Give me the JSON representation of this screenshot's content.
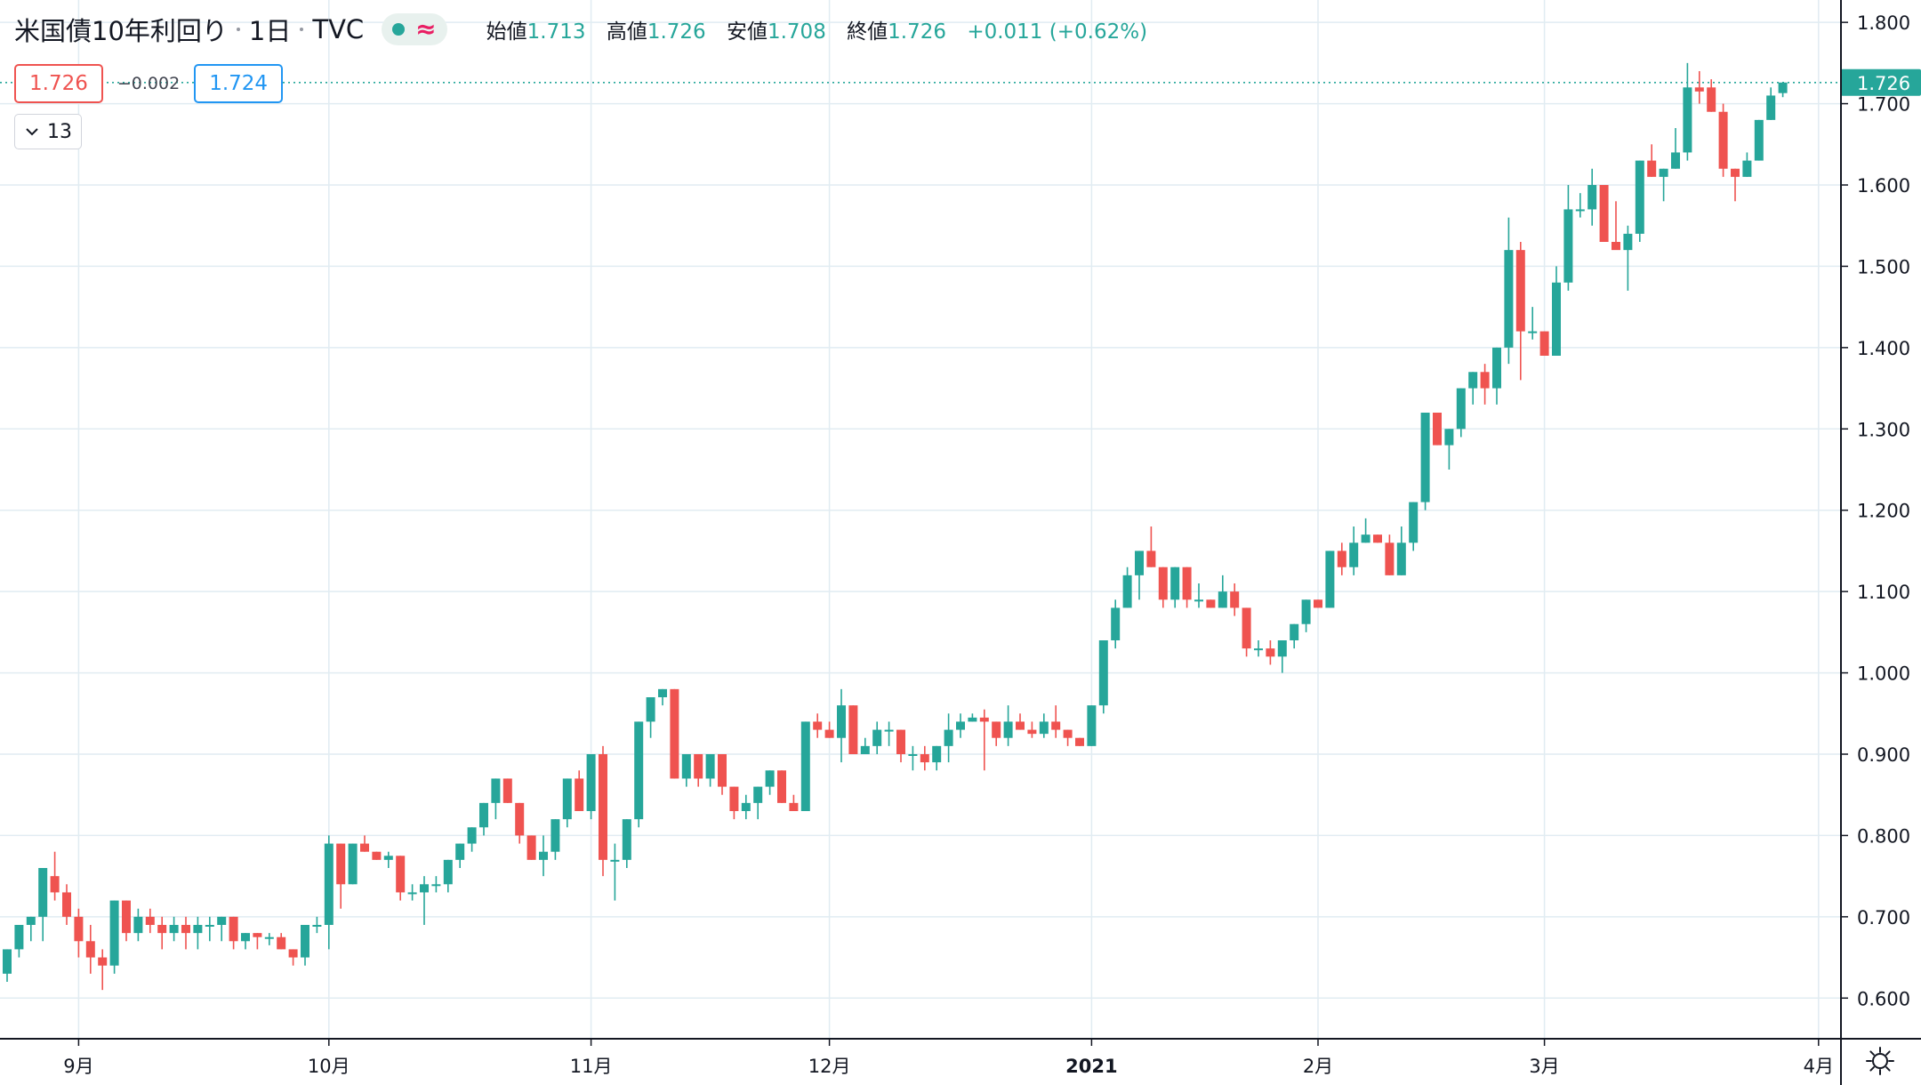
{
  "header": {
    "symbol": "米国債10年利回り",
    "interval": "1日",
    "exchange": "TVC",
    "labels": {
      "open": "始値",
      "high": "高値",
      "low": "安値",
      "close": "終値"
    },
    "values": {
      "open": "1.713",
      "high": "1.726",
      "low": "1.708",
      "close": "1.726"
    },
    "change": "+0.011 (+0.62%)",
    "status_icon": "market-status-dot-icon",
    "wave_icon": "delayed-data-icon"
  },
  "trade": {
    "sell": "1.726",
    "spread": "−0.002",
    "buy": "1.724"
  },
  "collapse_count": "13",
  "colors": {
    "up": "#26a69a",
    "down": "#ef5350",
    "grid": "#e1ecf2",
    "lastPrice": "#26a69a"
  },
  "chart_data": {
    "type": "candlestick",
    "instrument": "米国債10年利回り",
    "ylim": [
      0.55,
      1.81
    ],
    "yticks": [
      "0.600",
      "0.700",
      "0.800",
      "0.900",
      "1.000",
      "1.100",
      "1.200",
      "1.300",
      "1.400",
      "1.500",
      "1.600",
      "1.700",
      "1.800"
    ],
    "xticks": [
      {
        "label": "9月",
        "index": 6
      },
      {
        "label": "10月",
        "index": 27
      },
      {
        "label": "11月",
        "index": 49
      },
      {
        "label": "12月",
        "index": 69
      },
      {
        "label": "2021",
        "index": 91
      },
      {
        "label": "2月",
        "index": 110
      },
      {
        "label": "3月",
        "index": 129
      },
      {
        "label": "4月",
        "index": 152
      }
    ],
    "last_price": "1.726",
    "candles": [
      [
        0.63,
        0.66,
        0.62,
        0.66
      ],
      [
        0.66,
        0.69,
        0.65,
        0.69
      ],
      [
        0.69,
        0.7,
        0.67,
        0.7
      ],
      [
        0.7,
        0.76,
        0.67,
        0.76
      ],
      [
        0.75,
        0.78,
        0.72,
        0.73
      ],
      [
        0.73,
        0.74,
        0.69,
        0.7
      ],
      [
        0.7,
        0.71,
        0.65,
        0.67
      ],
      [
        0.67,
        0.69,
        0.63,
        0.65
      ],
      [
        0.65,
        0.66,
        0.61,
        0.64
      ],
      [
        0.64,
        0.72,
        0.63,
        0.72
      ],
      [
        0.72,
        0.72,
        0.67,
        0.68
      ],
      [
        0.68,
        0.71,
        0.67,
        0.7
      ],
      [
        0.7,
        0.71,
        0.68,
        0.69
      ],
      [
        0.69,
        0.7,
        0.66,
        0.68
      ],
      [
        0.68,
        0.7,
        0.67,
        0.69
      ],
      [
        0.69,
        0.7,
        0.66,
        0.68
      ],
      [
        0.68,
        0.7,
        0.66,
        0.69
      ],
      [
        0.69,
        0.7,
        0.67,
        0.69
      ],
      [
        0.69,
        0.7,
        0.67,
        0.7
      ],
      [
        0.7,
        0.7,
        0.66,
        0.67
      ],
      [
        0.67,
        0.68,
        0.66,
        0.68
      ],
      [
        0.68,
        0.68,
        0.66,
        0.675
      ],
      [
        0.675,
        0.68,
        0.665,
        0.675
      ],
      [
        0.675,
        0.68,
        0.66,
        0.66
      ],
      [
        0.66,
        0.66,
        0.64,
        0.65
      ],
      [
        0.65,
        0.69,
        0.64,
        0.69
      ],
      [
        0.69,
        0.7,
        0.68,
        0.69
      ],
      [
        0.69,
        0.8,
        0.66,
        0.79
      ],
      [
        0.79,
        0.79,
        0.71,
        0.74
      ],
      [
        0.74,
        0.79,
        0.74,
        0.79
      ],
      [
        0.79,
        0.8,
        0.78,
        0.78
      ],
      [
        0.78,
        0.78,
        0.77,
        0.77
      ],
      [
        0.77,
        0.78,
        0.76,
        0.775
      ],
      [
        0.775,
        0.775,
        0.72,
        0.73
      ],
      [
        0.73,
        0.74,
        0.72,
        0.73
      ],
      [
        0.73,
        0.75,
        0.69,
        0.74
      ],
      [
        0.74,
        0.75,
        0.73,
        0.74
      ],
      [
        0.74,
        0.77,
        0.73,
        0.77
      ],
      [
        0.77,
        0.79,
        0.76,
        0.79
      ],
      [
        0.79,
        0.81,
        0.78,
        0.81
      ],
      [
        0.81,
        0.84,
        0.8,
        0.84
      ],
      [
        0.84,
        0.87,
        0.82,
        0.87
      ],
      [
        0.87,
        0.87,
        0.84,
        0.84
      ],
      [
        0.84,
        0.84,
        0.79,
        0.8
      ],
      [
        0.8,
        0.8,
        0.77,
        0.77
      ],
      [
        0.77,
        0.8,
        0.75,
        0.78
      ],
      [
        0.78,
        0.82,
        0.77,
        0.82
      ],
      [
        0.82,
        0.87,
        0.81,
        0.87
      ],
      [
        0.87,
        0.88,
        0.83,
        0.83
      ],
      [
        0.83,
        0.9,
        0.82,
        0.9
      ],
      [
        0.9,
        0.91,
        0.75,
        0.77
      ],
      [
        0.77,
        0.79,
        0.72,
        0.77
      ],
      [
        0.77,
        0.82,
        0.76,
        0.82
      ],
      [
        0.82,
        0.94,
        0.81,
        0.94
      ],
      [
        0.94,
        0.97,
        0.92,
        0.97
      ],
      [
        0.97,
        0.98,
        0.96,
        0.98
      ],
      [
        0.98,
        0.98,
        0.87,
        0.87
      ],
      [
        0.87,
        0.9,
        0.86,
        0.9
      ],
      [
        0.9,
        0.9,
        0.86,
        0.87
      ],
      [
        0.87,
        0.9,
        0.86,
        0.9
      ],
      [
        0.9,
        0.9,
        0.85,
        0.86
      ],
      [
        0.86,
        0.86,
        0.82,
        0.83
      ],
      [
        0.83,
        0.85,
        0.82,
        0.84
      ],
      [
        0.84,
        0.86,
        0.82,
        0.86
      ],
      [
        0.86,
        0.88,
        0.85,
        0.88
      ],
      [
        0.88,
        0.88,
        0.84,
        0.84
      ],
      [
        0.84,
        0.85,
        0.83,
        0.83
      ],
      [
        0.83,
        0.94,
        0.83,
        0.94
      ],
      [
        0.94,
        0.95,
        0.92,
        0.93
      ],
      [
        0.93,
        0.94,
        0.92,
        0.92
      ],
      [
        0.92,
        0.98,
        0.89,
        0.96
      ],
      [
        0.96,
        0.96,
        0.9,
        0.9
      ],
      [
        0.9,
        0.92,
        0.9,
        0.91
      ],
      [
        0.91,
        0.94,
        0.9,
        0.93
      ],
      [
        0.93,
        0.94,
        0.91,
        0.93
      ],
      [
        0.93,
        0.93,
        0.89,
        0.9
      ],
      [
        0.9,
        0.91,
        0.88,
        0.9
      ],
      [
        0.9,
        0.91,
        0.88,
        0.89
      ],
      [
        0.89,
        0.91,
        0.88,
        0.91
      ],
      [
        0.91,
        0.95,
        0.89,
        0.93
      ],
      [
        0.93,
        0.95,
        0.92,
        0.94
      ],
      [
        0.94,
        0.95,
        0.94,
        0.945
      ],
      [
        0.945,
        0.955,
        0.88,
        0.94
      ],
      [
        0.94,
        0.94,
        0.91,
        0.92
      ],
      [
        0.92,
        0.96,
        0.91,
        0.94
      ],
      [
        0.94,
        0.95,
        0.93,
        0.93
      ],
      [
        0.93,
        0.94,
        0.92,
        0.925
      ],
      [
        0.925,
        0.95,
        0.92,
        0.94
      ],
      [
        0.94,
        0.96,
        0.92,
        0.93
      ],
      [
        0.93,
        0.93,
        0.91,
        0.92
      ],
      [
        0.92,
        0.92,
        0.91,
        0.91
      ],
      [
        0.91,
        0.96,
        0.91,
        0.96
      ],
      [
        0.96,
        1.04,
        0.95,
        1.04
      ],
      [
        1.04,
        1.09,
        1.03,
        1.08
      ],
      [
        1.08,
        1.13,
        1.08,
        1.12
      ],
      [
        1.12,
        1.15,
        1.09,
        1.15
      ],
      [
        1.15,
        1.18,
        1.13,
        1.13
      ],
      [
        1.13,
        1.13,
        1.08,
        1.09
      ],
      [
        1.09,
        1.13,
        1.08,
        1.13
      ],
      [
        1.13,
        1.13,
        1.08,
        1.09
      ],
      [
        1.09,
        1.11,
        1.08,
        1.09
      ],
      [
        1.09,
        1.09,
        1.08,
        1.08
      ],
      [
        1.08,
        1.12,
        1.08,
        1.1
      ],
      [
        1.1,
        1.11,
        1.07,
        1.08
      ],
      [
        1.08,
        1.08,
        1.02,
        1.03
      ],
      [
        1.03,
        1.04,
        1.02,
        1.03
      ],
      [
        1.03,
        1.04,
        1.01,
        1.02
      ],
      [
        1.02,
        1.04,
        1.0,
        1.04
      ],
      [
        1.04,
        1.06,
        1.03,
        1.06
      ],
      [
        1.06,
        1.09,
        1.05,
        1.09
      ],
      [
        1.09,
        1.09,
        1.08,
        1.08
      ],
      [
        1.08,
        1.15,
        1.08,
        1.15
      ],
      [
        1.15,
        1.16,
        1.12,
        1.13
      ],
      [
        1.13,
        1.18,
        1.12,
        1.16
      ],
      [
        1.16,
        1.19,
        1.16,
        1.17
      ],
      [
        1.17,
        1.17,
        1.16,
        1.16
      ],
      [
        1.16,
        1.17,
        1.12,
        1.12
      ],
      [
        1.12,
        1.18,
        1.12,
        1.16
      ],
      [
        1.16,
        1.21,
        1.15,
        1.21
      ],
      [
        1.21,
        1.32,
        1.2,
        1.32
      ],
      [
        1.32,
        1.32,
        1.28,
        1.28
      ],
      [
        1.28,
        1.3,
        1.25,
        1.3
      ],
      [
        1.3,
        1.35,
        1.29,
        1.35
      ],
      [
        1.35,
        1.37,
        1.33,
        1.37
      ],
      [
        1.37,
        1.38,
        1.33,
        1.35
      ],
      [
        1.35,
        1.4,
        1.33,
        1.4
      ],
      [
        1.4,
        1.56,
        1.38,
        1.52
      ],
      [
        1.52,
        1.53,
        1.36,
        1.42
      ],
      [
        1.42,
        1.45,
        1.41,
        1.42
      ],
      [
        1.42,
        1.42,
        1.39,
        1.39
      ],
      [
        1.39,
        1.5,
        1.39,
        1.48
      ],
      [
        1.48,
        1.6,
        1.47,
        1.57
      ],
      [
        1.57,
        1.59,
        1.56,
        1.57
      ],
      [
        1.57,
        1.62,
        1.55,
        1.6
      ],
      [
        1.6,
        1.6,
        1.53,
        1.53
      ],
      [
        1.53,
        1.58,
        1.53,
        1.52
      ],
      [
        1.52,
        1.55,
        1.47,
        1.54
      ],
      [
        1.54,
        1.63,
        1.53,
        1.63
      ],
      [
        1.63,
        1.65,
        1.61,
        1.61
      ],
      [
        1.61,
        1.62,
        1.58,
        1.62
      ],
      [
        1.62,
        1.67,
        1.62,
        1.64
      ],
      [
        1.64,
        1.75,
        1.63,
        1.72
      ],
      [
        1.72,
        1.74,
        1.7,
        1.715
      ],
      [
        1.72,
        1.73,
        1.69,
        1.69
      ],
      [
        1.69,
        1.7,
        1.61,
        1.62
      ],
      [
        1.62,
        1.62,
        1.58,
        1.61
      ],
      [
        1.61,
        1.64,
        1.61,
        1.63
      ],
      [
        1.63,
        1.68,
        1.63,
        1.68
      ],
      [
        1.68,
        1.72,
        1.68,
        1.71
      ],
      [
        1.713,
        1.726,
        1.708,
        1.726
      ]
    ]
  }
}
